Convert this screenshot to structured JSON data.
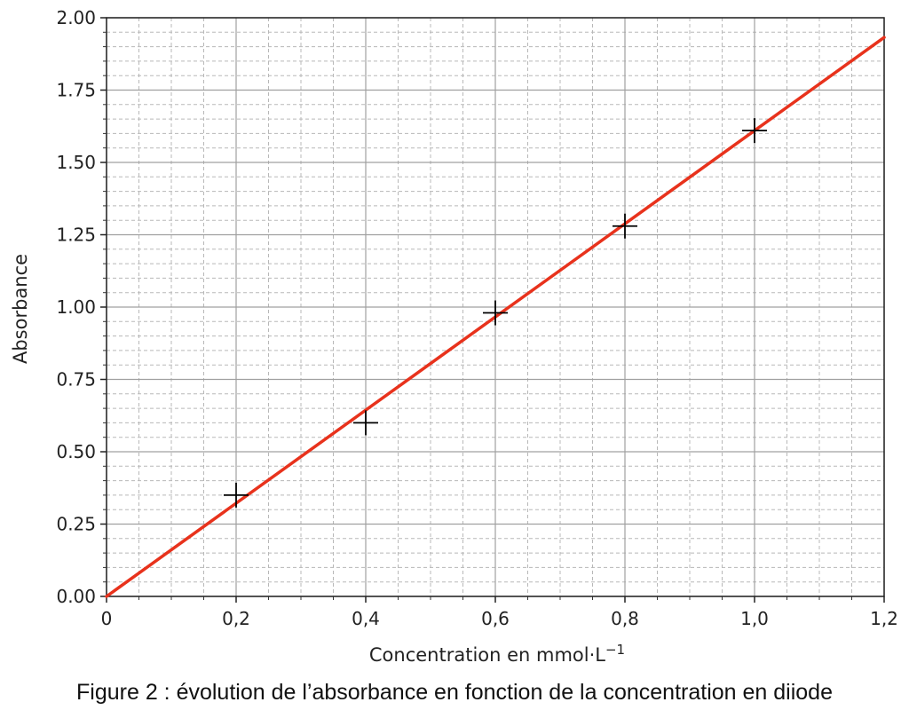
{
  "caption": "Figure 2 : évolution de l’absorbance en fonction de la concentration en diiode",
  "chart_data": {
    "type": "scatter",
    "xlabel_main": "Concentration en mmol·L",
    "xlabel_sup": "−1",
    "ylabel": "Absorbance",
    "xlim": [
      0,
      1.2
    ],
    "ylim": [
      0,
      2.0
    ],
    "x_ticks": [
      0,
      0.2,
      0.4,
      0.6,
      0.8,
      1.0,
      1.2
    ],
    "x_tick_labels": [
      "0",
      "0,2",
      "0,4",
      "0,6",
      "0,8",
      "1,0",
      "1,2"
    ],
    "y_ticks": [
      0,
      0.25,
      0.5,
      0.75,
      1.0,
      1.25,
      1.5,
      1.75,
      2.0
    ],
    "y_tick_labels": [
      "0.00",
      "0.25",
      "0.50",
      "0.75",
      "1.00",
      "1.25",
      "1.50",
      "1.75",
      "2.00"
    ],
    "grid": "major solid, minor dashed",
    "points": [
      {
        "x": 0.2,
        "y": 0.35
      },
      {
        "x": 0.4,
        "y": 0.6
      },
      {
        "x": 0.6,
        "y": 0.98
      },
      {
        "x": 0.8,
        "y": 1.28
      },
      {
        "x": 1.0,
        "y": 1.61
      }
    ],
    "marker": "plus",
    "marker_color": "#000000",
    "fit_line": {
      "slope": 1.61,
      "intercept": 0,
      "x_range": [
        0,
        1.2
      ],
      "color": "#e8321c"
    }
  }
}
